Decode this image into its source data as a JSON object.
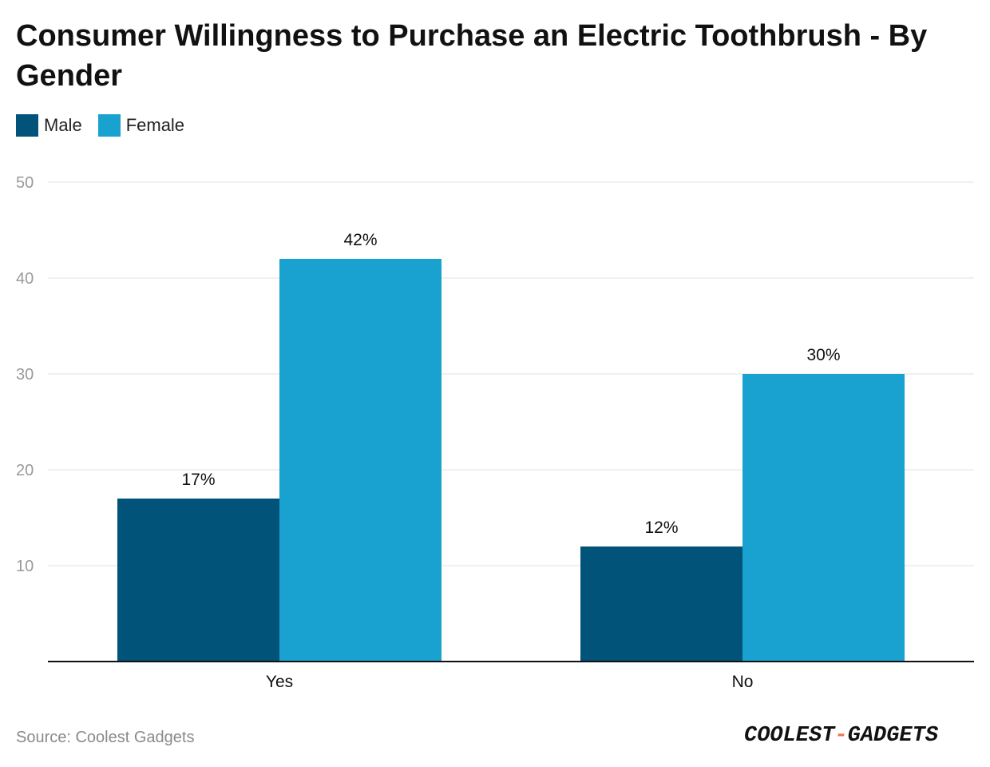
{
  "chart_data": {
    "type": "bar",
    "title": "Consumer Willingness to Purchase an Electric Toothbrush - By Gender",
    "categories": [
      "Yes",
      "No"
    ],
    "series": [
      {
        "name": "Male",
        "values": [
          17,
          12
        ],
        "labels": [
          "17%",
          "12%"
        ],
        "color": "#02537a"
      },
      {
        "name": "Female",
        "values": [
          42,
          30
        ],
        "labels": [
          "42%",
          "30%"
        ],
        "color": "#19a2cf"
      }
    ],
    "ylim": [
      0,
      50
    ],
    "yticks": [
      10,
      20,
      30,
      40,
      50
    ],
    "xlabel": "",
    "ylabel": "",
    "grid": true,
    "legend": "top-left"
  },
  "source": "Source: Coolest Gadgets",
  "logo": {
    "part1": "COOLEST",
    "dash": "-",
    "part2": "GADGETS",
    "accent": "#e8794b"
  }
}
